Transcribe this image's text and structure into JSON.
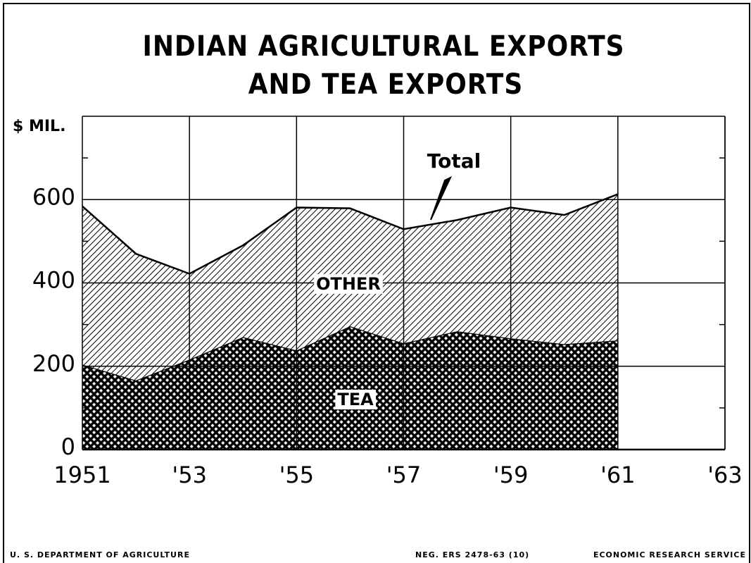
{
  "chart_data": {
    "type": "stacked_area",
    "title": [
      "INDIAN AGRICULTURAL EXPORTS",
      "AND TEA EXPORTS"
    ],
    "y_label": "$ MIL.",
    "x": [
      1951,
      1952,
      1953,
      1954,
      1955,
      1956,
      1957,
      1958,
      1959,
      1960,
      1961
    ],
    "series": [
      {
        "name": "TEA",
        "color": "#000000",
        "pattern": "crosshatch",
        "values": [
          204,
          166,
          216,
          270,
          238,
          296,
          255,
          284,
          267,
          253,
          262
        ]
      },
      {
        "name": "OTHER",
        "color": "#000000",
        "pattern": "diagonal",
        "values": [
          380,
          304,
          206,
          220,
          343,
          283,
          274,
          267,
          314,
          310,
          351
        ]
      }
    ],
    "total_label": "Total",
    "xlim": [
      1951,
      1963
    ],
    "xticks": [
      {
        "value": 1951,
        "label": "1951"
      },
      {
        "value": 1953,
        "label": "'53"
      },
      {
        "value": 1955,
        "label": "'55"
      },
      {
        "value": 1957,
        "label": "'57"
      },
      {
        "value": 1959,
        "label": "'59"
      },
      {
        "value": 1961,
        "label": "'61"
      },
      {
        "value": 1963,
        "label": "'63"
      }
    ],
    "ylim": [
      0,
      800
    ],
    "yticks": [
      0,
      200,
      400,
      600
    ],
    "yminor_ticks": [
      100,
      300,
      500,
      700
    ],
    "grid": true,
    "footer": [
      "U. S. DEPARTMENT OF AGRICULTURE",
      "NEG. ERS 2478-63 (10)",
      "ECONOMIC RESEARCH SERVICE"
    ]
  }
}
